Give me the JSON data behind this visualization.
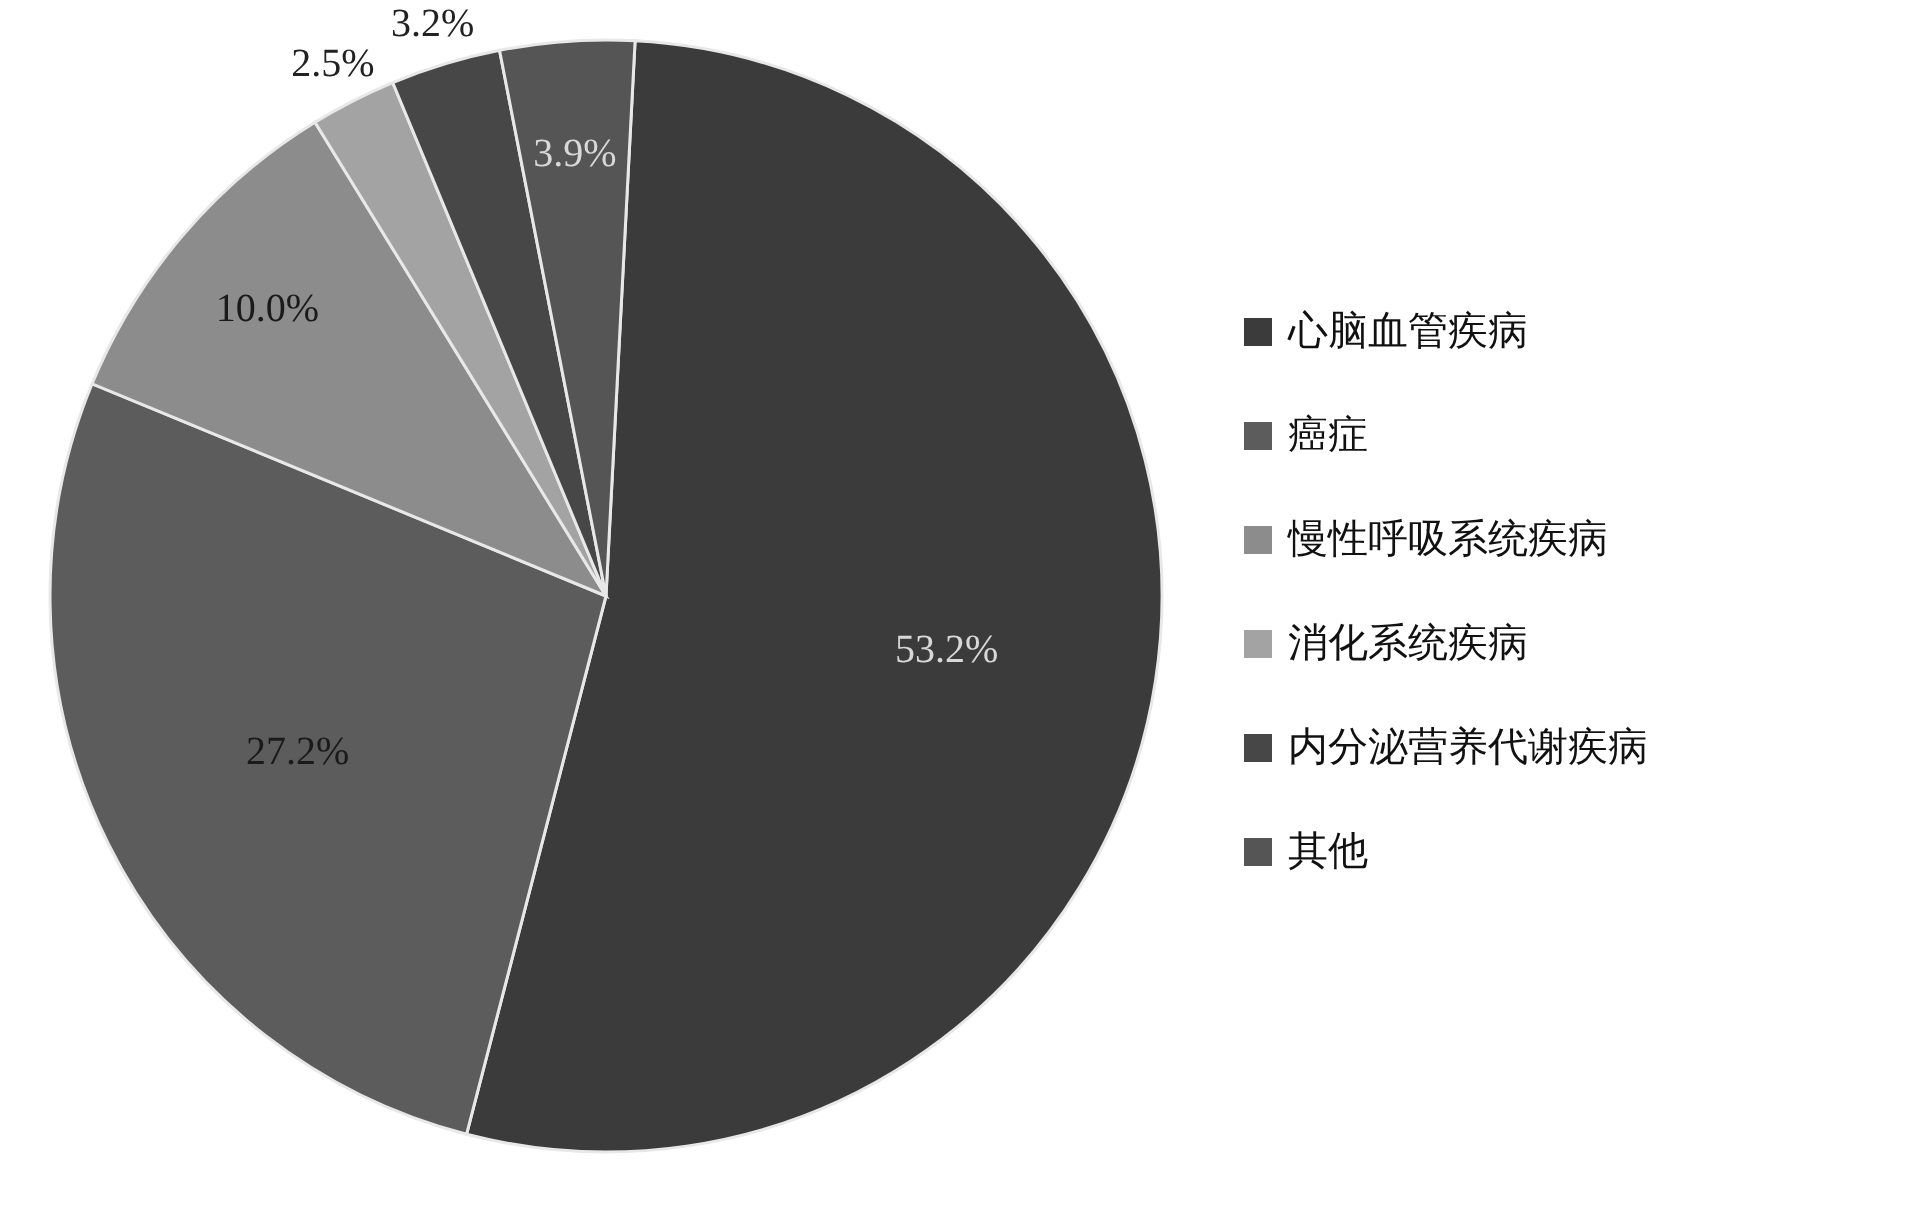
{
  "chart_data": {
    "type": "pie",
    "categories": [
      "心脑血管疾病",
      "癌症",
      "慢性呼吸系统疾病",
      "消化系统疾病",
      "内分泌营养代谢疾病",
      "其他"
    ],
    "values": [
      53.2,
      27.2,
      10.0,
      2.5,
      3.2,
      3.9
    ],
    "colors": [
      "#3b3b3b",
      "#5c5c5c",
      "#8c8c8c",
      "#a3a3a3",
      "#474747",
      "#555555"
    ],
    "value_labels": [
      "53.2%",
      "27.2%",
      "10.0%",
      "2.5%",
      "3.2%",
      "3.9%"
    ],
    "legend": "right"
  }
}
